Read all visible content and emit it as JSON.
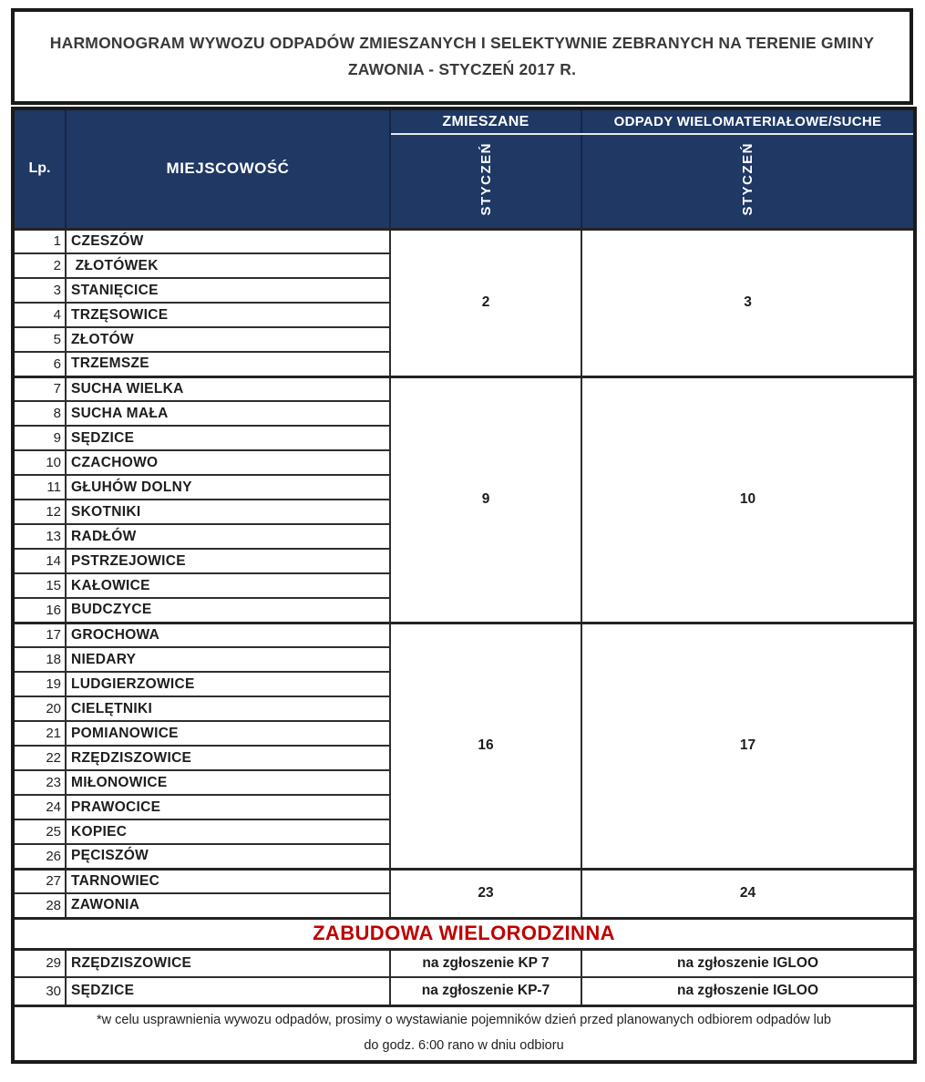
{
  "page": {
    "stray_dot": ".",
    "title": "HARMONOGRAM WYWOZU ODPADÓW ZMIESZANYCH I SELEKTYWNIE ZEBRANYCH NA TERENIE GMINY ZAWONIA - STYCZEŃ 2017 R."
  },
  "colors": {
    "header_bg": "#1F3864",
    "section_red": "#C00000",
    "outer_border": "#1a1a1a",
    "inner_border": "#2e2e2e"
  },
  "table": {
    "headers": {
      "lp": "Lp.",
      "place": "MIEJSCOWOŚĆ",
      "mixed": "ZMIESZANE",
      "multi": "ODPADY WIELOMATERIAŁOWE/SUCHE",
      "mixed_month": "STYCZEŃ",
      "multi_month": "STYCZEŃ"
    },
    "groups": [
      {
        "mixed_date": "2",
        "multi_date": "3",
        "rows": [
          {
            "no": "1",
            "name": "CZESZÓW"
          },
          {
            "no": "2",
            "name": " ZŁOTÓWEK"
          },
          {
            "no": "3",
            "name": "STANIĘCICE"
          },
          {
            "no": "4",
            "name": "TRZĘSOWICE"
          },
          {
            "no": "5",
            "name": "ZŁOTÓW"
          },
          {
            "no": "6",
            "name": "TRZEMSZE"
          }
        ]
      },
      {
        "mixed_date": "9",
        "multi_date": "10",
        "rows": [
          {
            "no": "7",
            "name": "SUCHA WIELKA"
          },
          {
            "no": "8",
            "name": "SUCHA MAŁA"
          },
          {
            "no": "9",
            "name": "SĘDZICE"
          },
          {
            "no": "10",
            "name": "CZACHOWO"
          },
          {
            "no": "11",
            "name": "GŁUHÓW DOLNY"
          },
          {
            "no": "12",
            "name": "SKOTNIKI"
          },
          {
            "no": "13",
            "name": "RADŁÓW"
          },
          {
            "no": "14",
            "name": "PSTRZEJOWICE"
          },
          {
            "no": "15",
            "name": "KAŁOWICE"
          },
          {
            "no": "16",
            "name": "BUDCZYCE"
          }
        ]
      },
      {
        "mixed_date": "16",
        "multi_date": "17",
        "rows": [
          {
            "no": "17",
            "name": "GROCHOWA"
          },
          {
            "no": "18",
            "name": "NIEDARY"
          },
          {
            "no": "19",
            "name": "LUDGIERZOWICE"
          },
          {
            "no": "20",
            "name": "CIELĘTNIKI"
          },
          {
            "no": "21",
            "name": "POMIANOWICE"
          },
          {
            "no": "22",
            "name": "RZĘDZISZOWICE"
          },
          {
            "no": "23",
            "name": "MIŁONOWICE"
          },
          {
            "no": "24",
            "name": "PRAWOCICE"
          },
          {
            "no": "25",
            "name": "KOPIEC"
          },
          {
            "no": "26",
            "name": "PĘCISZÓW"
          }
        ]
      },
      {
        "mixed_date": "23",
        "multi_date": "24",
        "rows": [
          {
            "no": "27",
            "name": "TARNOWIEC"
          },
          {
            "no": "28",
            "name": "ZAWONIA"
          }
        ]
      }
    ],
    "section_header": "ZABUDOWA WIELORODZINNA",
    "special_rows": [
      {
        "no": "29",
        "name": "RZĘDZISZOWICE",
        "mixed": "na zgłoszenie KP 7",
        "multi": "na zgłoszenie IGLOO"
      },
      {
        "no": "30",
        "name": "SĘDZICE",
        "mixed": "na zgłoszenie KP-7",
        "multi": "na zgłoszenie IGLOO"
      }
    ],
    "footnote_lines": [
      "*w celu usprawnienia wywozu odpadów, prosimy o wystawianie pojemników dzień przed planowanych odbiorem odpadów lub",
      "do godz. 6:00 rano w dniu odbioru"
    ]
  }
}
